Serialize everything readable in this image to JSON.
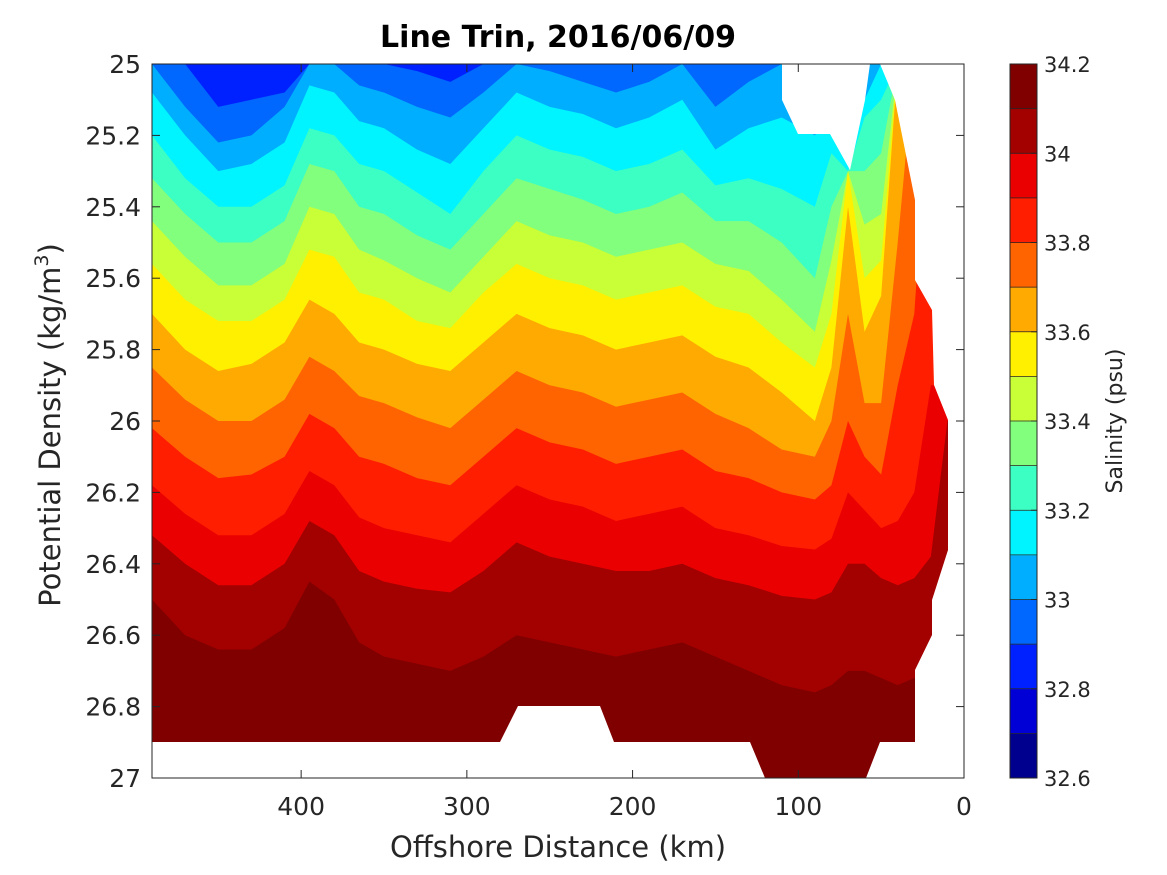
{
  "chart_data": {
    "type": "heatmap",
    "subtype": "filled-contour section",
    "title": "Line Trin, 2016/06/09",
    "xlabel": "Offshore Distance (km)",
    "ylabel_main": "Potential Density (kg/m",
    "ylabel_sup": "3",
    "ylabel_close": ")",
    "xlim": [
      490,
      0
    ],
    "x_reversed": true,
    "ylim": [
      25,
      27
    ],
    "y_reversed": true,
    "x_ticks": [
      400,
      300,
      200,
      100,
      0
    ],
    "y_ticks": [
      "25",
      "25.2",
      "25.4",
      "25.6",
      "25.8",
      "26",
      "26.2",
      "26.4",
      "26.6",
      "26.8",
      "27"
    ],
    "colorbar": {
      "label": "Salinity (psu)",
      "range": [
        32.6,
        34.2
      ],
      "step": 0.1,
      "ticks": [
        "32.6",
        "32.8",
        "33",
        "33.2",
        "33.4",
        "33.6",
        "33.8",
        "34",
        "34.2"
      ],
      "colormap": "jet",
      "colors": [
        "#00008f",
        "#0000d6",
        "#0021ff",
        "#0067ff",
        "#00aeff",
        "#00f4ff",
        "#3cffc3",
        "#82ff7c",
        "#c8ff36",
        "#fff000",
        "#ffaa00",
        "#ff6400",
        "#ff1e00",
        "#ea0000",
        "#a30000",
        "#800000"
      ]
    },
    "x": [
      490,
      470,
      450,
      430,
      410,
      395,
      380,
      365,
      350,
      330,
      310,
      290,
      270,
      250,
      230,
      210,
      190,
      170,
      150,
      130,
      110,
      90,
      80,
      70,
      60,
      50,
      40,
      30,
      20,
      10
    ],
    "isohaline_levels": [
      32.8,
      32.9,
      33.0,
      33.1,
      33.2,
      33.3,
      33.4,
      33.5,
      33.6,
      33.7,
      33.8,
      33.9,
      34.0,
      34.1
    ],
    "isohaline_density": [
      [
        25.0,
        25.0,
        25.0,
        25.0,
        25.0,
        25.0,
        25.0,
        25.0,
        25.0,
        25.0,
        25.0,
        25.0,
        25.0,
        25.0,
        25.0,
        25.0,
        25.0,
        25.0,
        25.0,
        25.0,
        25.0,
        25.0,
        25.0,
        25.0,
        25.0,
        25.0,
        25.0,
        25.0,
        25.0,
        25.0
      ],
      [
        25.0,
        25.0,
        25.12,
        25.1,
        25.08,
        25.0,
        25.0,
        25.0,
        25.0,
        25.02,
        25.05,
        25.0,
        25.0,
        25.0,
        25.0,
        25.0,
        25.0,
        25.0,
        25.0,
        25.0,
        25.0,
        25.0,
        25.0,
        25.0,
        25.0,
        25.0,
        25.0,
        25.0,
        25.0,
        25.0
      ],
      [
        25.0,
        25.12,
        25.22,
        25.2,
        25.12,
        25.0,
        25.0,
        25.06,
        25.08,
        25.12,
        25.15,
        25.08,
        25.0,
        25.02,
        25.05,
        25.08,
        25.05,
        25.0,
        25.12,
        25.05,
        25.0,
        25.0,
        25.0,
        25.0,
        25.0,
        25.0,
        25.0,
        25.0,
        25.0,
        25.0
      ],
      [
        25.08,
        25.2,
        25.3,
        25.28,
        25.22,
        25.06,
        25.08,
        25.16,
        25.18,
        25.24,
        25.28,
        25.18,
        25.08,
        25.12,
        25.14,
        25.18,
        25.15,
        25.1,
        25.24,
        25.18,
        25.15,
        25.2,
        25.15,
        25.2,
        25.1,
        25.0,
        25.0,
        25.0,
        25.0,
        25.0
      ],
      [
        25.2,
        25.32,
        25.4,
        25.4,
        25.34,
        25.18,
        25.2,
        25.28,
        25.3,
        25.36,
        25.42,
        25.3,
        25.2,
        25.24,
        25.26,
        25.3,
        25.28,
        25.24,
        25.34,
        25.32,
        25.35,
        25.4,
        25.25,
        25.3,
        25.15,
        25.1,
        25.0,
        25.0,
        25.0,
        25.0
      ],
      [
        25.32,
        25.42,
        25.5,
        25.5,
        25.44,
        25.28,
        25.3,
        25.4,
        25.42,
        25.48,
        25.52,
        25.42,
        25.32,
        25.35,
        25.38,
        25.42,
        25.4,
        25.36,
        25.44,
        25.44,
        25.5,
        25.6,
        25.4,
        25.3,
        25.3,
        25.25,
        25.0,
        25.0,
        25.0,
        25.0
      ],
      [
        25.44,
        25.54,
        25.62,
        25.62,
        25.56,
        25.4,
        25.42,
        25.52,
        25.55,
        25.6,
        25.64,
        25.54,
        25.44,
        25.48,
        25.5,
        25.54,
        25.52,
        25.5,
        25.56,
        25.58,
        25.66,
        25.75,
        25.55,
        25.3,
        25.45,
        25.42,
        25.0,
        25.0,
        25.0,
        25.0
      ],
      [
        25.56,
        25.66,
        25.72,
        25.72,
        25.66,
        25.52,
        25.54,
        25.64,
        25.66,
        25.72,
        25.74,
        25.64,
        25.56,
        25.6,
        25.62,
        25.66,
        25.64,
        25.62,
        25.68,
        25.7,
        25.78,
        25.85,
        25.7,
        25.3,
        25.6,
        25.55,
        25.0,
        25.0,
        25.0,
        25.0
      ],
      [
        25.7,
        25.8,
        25.86,
        25.84,
        25.78,
        25.66,
        25.7,
        25.78,
        25.8,
        25.84,
        25.86,
        25.78,
        25.7,
        25.74,
        25.76,
        25.8,
        25.78,
        25.76,
        25.82,
        25.85,
        25.92,
        26.0,
        25.85,
        25.4,
        25.75,
        25.65,
        25.0,
        25.0,
        25.0,
        25.0
      ],
      [
        25.85,
        25.94,
        26.0,
        26.0,
        25.94,
        25.82,
        25.86,
        25.93,
        25.95,
        25.99,
        26.02,
        25.94,
        25.86,
        25.9,
        25.92,
        25.96,
        25.94,
        25.92,
        25.98,
        26.02,
        26.08,
        26.1,
        26.0,
        25.7,
        25.95,
        25.95,
        25.5,
        25.0,
        25.0,
        25.0
      ],
      [
        26.02,
        26.1,
        26.16,
        26.15,
        26.1,
        25.98,
        26.02,
        26.1,
        26.12,
        26.16,
        26.18,
        26.1,
        26.02,
        26.06,
        26.08,
        26.12,
        26.1,
        26.08,
        26.14,
        26.16,
        26.2,
        26.22,
        26.18,
        26.0,
        26.1,
        26.15,
        25.9,
        25.7,
        25.0,
        25.0
      ],
      [
        26.18,
        26.26,
        26.32,
        26.32,
        26.26,
        26.14,
        26.18,
        26.27,
        26.3,
        26.32,
        26.34,
        26.26,
        26.18,
        26.22,
        26.24,
        26.28,
        26.26,
        26.24,
        26.3,
        26.32,
        26.35,
        26.36,
        26.33,
        26.2,
        26.25,
        26.3,
        26.28,
        26.2,
        25.9,
        25.9
      ],
      [
        26.32,
        26.4,
        26.46,
        26.46,
        26.4,
        26.28,
        26.32,
        26.42,
        26.45,
        26.47,
        26.48,
        26.42,
        26.34,
        26.38,
        26.4,
        26.42,
        26.42,
        26.4,
        26.44,
        26.46,
        26.49,
        26.5,
        26.48,
        26.4,
        26.4,
        26.44,
        26.46,
        26.44,
        26.38,
        26.0
      ],
      [
        26.5,
        26.6,
        26.64,
        26.64,
        26.58,
        26.45,
        26.5,
        26.62,
        26.66,
        26.68,
        26.7,
        26.66,
        26.6,
        26.62,
        26.64,
        26.66,
        26.64,
        26.62,
        26.66,
        26.7,
        26.74,
        26.76,
        26.74,
        26.7,
        26.7,
        26.72,
        26.74,
        26.72,
        26.7,
        26.6
      ]
    ],
    "mask_regions": [
      {
        "description": "no data below profile",
        "x": [
          490,
          280
        ],
        "density_below": 26.9
      },
      {
        "description": "no data near shore",
        "x": [
          30,
          0
        ],
        "density_below": 26.9
      }
    ]
  }
}
